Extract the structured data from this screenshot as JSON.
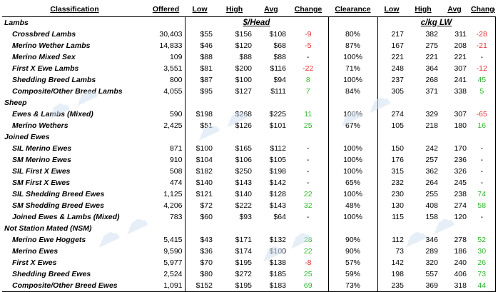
{
  "headers": [
    "Classification",
    "Offered",
    "Low",
    "High",
    "Avg",
    "Change",
    "Clearance",
    "Low",
    "High",
    "Avg",
    "Change"
  ],
  "units": {
    "head": "$/Head",
    "lw": "c/kg LW"
  },
  "groups": [
    {
      "name": "Lambs",
      "rows": [
        [
          "Crossbred Lambs",
          "30,403",
          "$55",
          "$156",
          "$108",
          "-9",
          "80%",
          "217",
          "382",
          "311",
          "-28"
        ],
        [
          "Merino Wether Lambs",
          "14,833",
          "$46",
          "$120",
          "$68",
          "-5",
          "87%",
          "167",
          "275",
          "208",
          "-21"
        ],
        [
          "Merino Mixed Sex",
          "109",
          "$88",
          "$88",
          "$88",
          "-",
          "100%",
          "221",
          "221",
          "221",
          "-"
        ],
        [
          "First X Ewe Lambs",
          "3,551",
          "$81",
          "$200",
          "$116",
          "-22",
          "71%",
          "248",
          "364",
          "307",
          "-12"
        ],
        [
          "Shedding Breed Lambs",
          "800",
          "$87",
          "$100",
          "$94",
          "8",
          "100%",
          "237",
          "268",
          "241",
          "45"
        ],
        [
          "Composite/Other Breed Lambs",
          "4,055",
          "$95",
          "$127",
          "$111",
          "7",
          "84%",
          "305",
          "371",
          "338",
          "5"
        ]
      ]
    },
    {
      "name": "Sheep",
      "rows": [
        [
          "Ewes & Lambs (Mixed)",
          "590",
          "$198",
          "$268",
          "$225",
          "11",
          "100%",
          "274",
          "329",
          "307",
          "-65"
        ],
        [
          "Merino Wethers",
          "2,425",
          "$51",
          "$126",
          "$101",
          "25",
          "67%",
          "105",
          "218",
          "180",
          "16"
        ]
      ]
    },
    {
      "name": "Joined Ewes",
      "rows": [
        [
          "SIL Merino Ewes",
          "871",
          "$100",
          "$165",
          "$112",
          "-",
          "100%",
          "150",
          "242",
          "170",
          "-"
        ],
        [
          "SM Merino Ewes",
          "910",
          "$104",
          "$106",
          "$105",
          "-",
          "100%",
          "176",
          "257",
          "236",
          "-"
        ],
        [
          "SIL First X Ewes",
          "508",
          "$182",
          "$250",
          "$198",
          "-",
          "100%",
          "315",
          "362",
          "326",
          "-"
        ],
        [
          "SM First X Ewes",
          "474",
          "$140",
          "$143",
          "$142",
          "-",
          "65%",
          "232",
          "264",
          "245",
          "-"
        ],
        [
          "SIL Shedding Breed Ewes",
          "1,125",
          "$121",
          "$140",
          "$128",
          "22",
          "100%",
          "230",
          "255",
          "238",
          "74"
        ],
        [
          "SM Shedding Breed Ewes",
          "4,206",
          "$72",
          "$222",
          "$143",
          "32",
          "48%",
          "130",
          "408",
          "274",
          "58"
        ],
        [
          "Joined Ewes & Lambs (Mixed)",
          "783",
          "$60",
          "$93",
          "$64",
          "-",
          "100%",
          "115",
          "158",
          "120",
          "-"
        ]
      ]
    },
    {
      "name": "Not Station Mated (NSM)",
      "rows": [
        [
          "Merino Ewe Hoggets",
          "5,415",
          "$43",
          "$171",
          "$132",
          "28",
          "90%",
          "112",
          "346",
          "278",
          "52"
        ],
        [
          "Merino Ewes",
          "9,590",
          "$36",
          "$174",
          "$100",
          "22",
          "90%",
          "73",
          "289",
          "186",
          "30"
        ],
        [
          "First X Ewes",
          "5,977",
          "$70",
          "$195",
          "$138",
          "-8",
          "57%",
          "142",
          "320",
          "240",
          "26"
        ],
        [
          "Shedding Breed Ewes",
          "2,524",
          "$80",
          "$272",
          "$185",
          "25",
          "59%",
          "198",
          "557",
          "406",
          "73"
        ],
        [
          "Composite/Other Breed Ewes",
          "1,091",
          "$152",
          "$195",
          "$183",
          "69",
          "73%",
          "235",
          "369",
          "318",
          "44"
        ]
      ]
    }
  ],
  "colors": {
    "negative": "#e03030",
    "positive": "#2fb52f",
    "watermark": "#d3e2f2"
  }
}
